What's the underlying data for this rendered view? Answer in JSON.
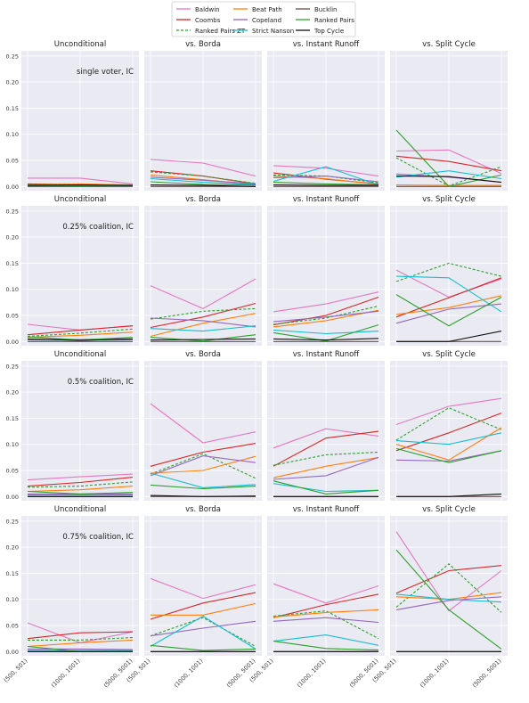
{
  "chart_data": {
    "type": "line",
    "x_categories": [
      "(500, 501)",
      "(1000, 1001)",
      "(5000, 5001)"
    ],
    "y_ticks": [
      0.0,
      0.05,
      0.1,
      0.15,
      0.2,
      0.25
    ],
    "y_tick_labels": [
      "0.00",
      "0.05",
      "0.10",
      "0.15",
      "0.20",
      "0.25"
    ],
    "ylim": [
      -0.008,
      0.26
    ],
    "grid": true,
    "legend_position": "top-center",
    "column_titles": [
      "Unconditional",
      "vs. Borda",
      "vs. Instant Runoff",
      "vs. Split Cycle"
    ],
    "row_annotations": [
      "single voter, IC",
      "0.25% coalition, IC",
      "0.5% coalition, IC",
      "0.75% coalition, IC"
    ],
    "legend": [
      {
        "name": "Baldwin",
        "color": "#e377c2",
        "dash": false
      },
      {
        "name": "Coombs",
        "color": "#d62728",
        "dash": false
      },
      {
        "name": "Ranked Pairs ZT",
        "color": "#2ca02c",
        "dash": true
      },
      {
        "name": "Beat Path",
        "color": "#ff7f0e",
        "dash": false
      },
      {
        "name": "Copeland",
        "color": "#9467bd",
        "dash": false
      },
      {
        "name": "Strict Nanson",
        "color": "#17becf",
        "dash": false
      },
      {
        "name": "Bucklin",
        "color": "#6b4c46",
        "dash": false
      },
      {
        "name": "Ranked Pairs",
        "color": "#2ca02c",
        "dash": false
      },
      {
        "name": "Top Cycle",
        "color": "#111111",
        "dash": false
      }
    ],
    "extra_series_colors": [
      "#1f77b4"
    ],
    "panels": [
      [
        {
          "lines": [
            [
              0.016,
              0.016,
              0.005
            ],
            [
              0.005,
              0.004,
              0.003
            ],
            [
              0.004,
              0.005,
              0.002
            ],
            [
              0.003,
              0.005,
              0.003
            ],
            [
              0.002,
              0.002,
              0.002
            ],
            [
              0.001,
              0.001,
              0.001
            ],
            [
              0.0,
              0.0,
              0.0
            ],
            [
              0.002,
              0.002,
              0.002
            ],
            [
              0.002,
              0.003,
              0.002
            ]
          ]
        },
        {
          "lines": [
            [
              0.052,
              0.045,
              0.02
            ],
            [
              0.03,
              0.02,
              0.005
            ],
            [
              0.028,
              0.02,
              0.006
            ],
            [
              0.022,
              0.013,
              0.004
            ],
            [
              0.018,
              0.012,
              0.005
            ],
            [
              0.015,
              0.008,
              0.004
            ],
            [
              0.0,
              0.0,
              0.0
            ],
            [
              0.009,
              0.004,
              0.003
            ],
            [
              0.003,
              0.002,
              0.0
            ]
          ]
        },
        {
          "lines": [
            [
              0.04,
              0.035,
              0.02
            ],
            [
              0.026,
              0.014,
              0.005
            ],
            [
              0.022,
              0.02,
              0.007
            ],
            [
              0.02,
              0.015,
              0.004
            ],
            [
              0.017,
              0.02,
              0.009
            ],
            [
              0.01,
              0.038,
              0.003
            ],
            [
              0.0,
              0.0,
              0.0
            ],
            [
              0.008,
              0.005,
              0.003
            ],
            [
              0.003,
              0.002,
              0.002
            ]
          ]
        },
        {
          "lines": [
            [
              0.068,
              0.07,
              0.025
            ],
            [
              0.058,
              0.048,
              0.03
            ],
            [
              0.055,
              0.001,
              0.038
            ],
            [
              0.003,
              0.002,
              0.002
            ],
            [
              0.024,
              0.018,
              0.008
            ],
            [
              0.018,
              0.03,
              0.015
            ],
            [
              0.0,
              0.0,
              0.0
            ],
            [
              0.108,
              0.0,
              0.022
            ],
            [
              0.02,
              0.019,
              0.008
            ]
          ]
        }
      ],
      [
        {
          "lines": [
            [
              0.033,
              0.022,
              0.03
            ],
            [
              0.013,
              0.022,
              0.03
            ],
            [
              0.01,
              0.016,
              0.024
            ],
            [
              0.008,
              0.012,
              0.018
            ],
            [
              0.004,
              0.004,
              0.005
            ],
            [
              0.003,
              0.003,
              0.003
            ],
            [
              0.0,
              0.0,
              0.0
            ],
            [
              0.009,
              0.003,
              0.008
            ],
            [
              0.005,
              0.002,
              0.005
            ]
          ]
        },
        {
          "lines": [
            [
              0.107,
              0.063,
              0.12
            ],
            [
              0.027,
              0.047,
              0.073
            ],
            [
              0.043,
              0.058,
              0.063
            ],
            [
              0.01,
              0.035,
              0.054
            ],
            [
              0.045,
              0.04,
              0.028
            ],
            [
              0.025,
              0.02,
              0.03
            ],
            [
              0.0,
              0.0,
              0.0
            ],
            [
              0.008,
              0.001,
              0.013
            ],
            [
              0.003,
              0.004,
              0.005
            ]
          ]
        },
        {
          "lines": [
            [
              0.057,
              0.072,
              0.095
            ],
            [
              0.032,
              0.05,
              0.085
            ],
            [
              0.033,
              0.045,
              0.068
            ],
            [
              0.028,
              0.04,
              0.06
            ],
            [
              0.038,
              0.047,
              0.058
            ],
            [
              0.022,
              0.015,
              0.02
            ],
            [
              0.0,
              0.0,
              0.0
            ],
            [
              0.017,
              0.001,
              0.032
            ],
            [
              0.005,
              0.003,
              0.006
            ]
          ]
        },
        {
          "lines": [
            [
              0.137,
              0.085,
              0.12
            ],
            [
              0.047,
              0.084,
              0.122
            ],
            [
              0.115,
              0.15,
              0.125
            ],
            [
              0.052,
              0.065,
              0.088
            ],
            [
              0.035,
              0.062,
              0.072
            ],
            [
              0.125,
              0.122,
              0.057
            ],
            [
              0.0,
              0.0,
              0.0
            ],
            [
              0.09,
              0.03,
              0.085
            ],
            [
              0.0,
              0.0,
              0.02
            ]
          ]
        }
      ],
      [
        {
          "lines": [
            [
              0.032,
              0.038,
              0.043
            ],
            [
              0.02,
              0.027,
              0.037
            ],
            [
              0.018,
              0.02,
              0.028
            ],
            [
              0.01,
              0.013,
              0.02
            ],
            [
              0.005,
              0.005,
              0.005
            ],
            [
              0.003,
              0.003,
              0.003
            ],
            [
              0.0,
              0.0,
              0.0
            ],
            [
              0.01,
              0.005,
              0.008
            ],
            [
              0.0,
              0.0,
              0.0
            ]
          ]
        },
        {
          "lines": [
            [
              0.178,
              0.103,
              0.124
            ],
            [
              0.058,
              0.085,
              0.102
            ],
            [
              0.043,
              0.082,
              0.035
            ],
            [
              0.045,
              0.05,
              0.077
            ],
            [
              0.04,
              0.078,
              0.065
            ],
            [
              0.045,
              0.017,
              0.023
            ],
            [
              0.0,
              0.0,
              0.0
            ],
            [
              0.022,
              0.015,
              0.02
            ],
            [
              0.002,
              0.0,
              0.001
            ]
          ]
        },
        {
          "lines": [
            [
              0.093,
              0.13,
              0.116
            ],
            [
              0.058,
              0.112,
              0.125
            ],
            [
              0.06,
              0.08,
              0.085
            ],
            [
              0.036,
              0.058,
              0.075
            ],
            [
              0.033,
              0.04,
              0.075
            ],
            [
              0.025,
              0.01,
              0.012
            ],
            [
              0.0,
              0.0,
              0.0
            ],
            [
              0.03,
              0.005,
              0.012
            ],
            [
              0.0,
              0.0,
              0.0
            ]
          ]
        },
        {
          "lines": [
            [
              0.138,
              0.173,
              0.188
            ],
            [
              0.088,
              0.122,
              0.16
            ],
            [
              0.108,
              0.17,
              0.128
            ],
            [
              0.1,
              0.07,
              0.132
            ],
            [
              0.07,
              0.068,
              0.088
            ],
            [
              0.107,
              0.1,
              0.122
            ],
            [
              0.0,
              0.0,
              0.0
            ],
            [
              0.092,
              0.065,
              0.088
            ],
            [
              0.0,
              0.0,
              0.005
            ]
          ]
        }
      ],
      [
        {
          "lines": [
            [
              0.055,
              0.017,
              0.038
            ],
            [
              0.025,
              0.036,
              0.038
            ],
            [
              0.022,
              0.022,
              0.027
            ],
            [
              0.01,
              0.017,
              0.022
            ],
            [
              0.005,
              0.005,
              0.004
            ],
            [
              0.002,
              0.002,
              0.002
            ],
            [
              0.0,
              0.0,
              0.0
            ],
            [
              0.01,
              0.0,
              0.0
            ],
            [
              0.0,
              0.0,
              0.0
            ]
          ]
        },
        {
          "lines": [
            [
              0.14,
              0.102,
              0.128
            ],
            [
              0.062,
              0.093,
              0.113
            ],
            [
              0.03,
              0.065,
              0.01
            ],
            [
              0.07,
              0.07,
              0.092
            ],
            [
              0.03,
              0.045,
              0.058
            ],
            [
              0.01,
              0.068,
              0.005
            ],
            [
              0.0,
              0.0,
              0.0
            ],
            [
              0.012,
              0.002,
              0.005
            ],
            [
              0.0,
              0.0,
              0.0
            ]
          ]
        },
        {
          "lines": [
            [
              0.13,
              0.093,
              0.126
            ],
            [
              0.065,
              0.09,
              0.11
            ],
            [
              0.068,
              0.078,
              0.025
            ],
            [
              0.066,
              0.075,
              0.08
            ],
            [
              0.058,
              0.065,
              0.056
            ],
            [
              0.02,
              0.032,
              0.012
            ],
            [
              0.0,
              0.0,
              0.0
            ],
            [
              0.02,
              0.006,
              0.003
            ],
            [
              0.0,
              0.0,
              0.0
            ]
          ]
        },
        {
          "lines": [
            [
              0.23,
              0.078,
              0.155
            ],
            [
              0.112,
              0.155,
              0.165
            ],
            [
              0.085,
              0.168,
              0.075
            ],
            [
              0.105,
              0.1,
              0.113
            ],
            [
              0.08,
              0.098,
              0.105
            ],
            [
              0.11,
              0.1,
              0.095
            ],
            [
              0.0,
              0.0,
              0.0
            ],
            [
              0.195,
              0.08,
              0.005
            ],
            [
              0.0,
              0.0,
              0.0
            ]
          ]
        }
      ]
    ]
  }
}
